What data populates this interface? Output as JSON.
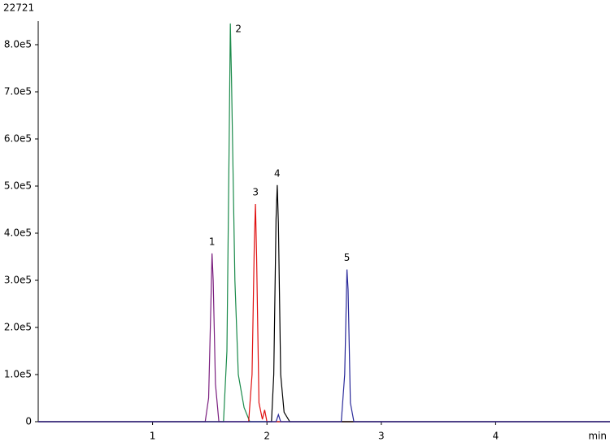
{
  "chart_data": {
    "type": "line",
    "corner_label": "22721",
    "x_label": "min",
    "xlim": [
      0,
      5
    ],
    "xticks": [
      1,
      2,
      3,
      4
    ],
    "ylim": [
      0,
      850000
    ],
    "yticks": [
      0,
      {
        "value": 100000,
        "label": "1.0e5"
      },
      {
        "value": 200000,
        "label": "2.0e5"
      },
      {
        "value": 300000,
        "label": "3.0e5"
      },
      {
        "value": 400000,
        "label": "4.0e5"
      },
      {
        "value": 500000,
        "label": "5.0e5"
      },
      {
        "value": 600000,
        "label": "6.0e5"
      },
      {
        "value": 700000,
        "label": "7.0e5"
      },
      {
        "value": 800000,
        "label": "8.0e5"
      }
    ],
    "series": [
      {
        "label": "1",
        "color": "#7b1f7f",
        "x": [
          0,
          1.46,
          1.49,
          1.51,
          1.52,
          1.53,
          1.55,
          1.58,
          5
        ],
        "values": [
          0,
          0,
          50000,
          250000,
          357000,
          300000,
          80000,
          0,
          0
        ]
      },
      {
        "label": "2",
        "color": "#1a8a4a",
        "x": [
          0,
          1.62,
          1.65,
          1.67,
          1.68,
          1.69,
          1.72,
          1.75,
          1.8,
          1.85,
          5
        ],
        "values": [
          0,
          0,
          150000,
          600000,
          845000,
          730000,
          300000,
          100000,
          30000,
          0,
          0
        ]
      },
      {
        "label": "3",
        "color": "#e01010",
        "x": [
          0,
          1.84,
          1.87,
          1.89,
          1.9,
          1.91,
          1.93,
          1.96,
          1.98,
          2.0,
          5
        ],
        "values": [
          0,
          0,
          100000,
          380000,
          462000,
          350000,
          40000,
          5000,
          25000,
          0,
          0
        ]
      },
      {
        "label": "4",
        "color": "#000000",
        "x": [
          0,
          2.04,
          2.06,
          2.08,
          2.09,
          2.1,
          2.12,
          2.15,
          2.2,
          5
        ],
        "values": [
          0,
          0,
          100000,
          430000,
          502000,
          420000,
          100000,
          20000,
          0,
          0
        ]
      },
      {
        "label": "5",
        "color": "#2a2a9a",
        "x": [
          0,
          2.08,
          2.1,
          2.12,
          2.65,
          2.68,
          2.7,
          2.71,
          2.73,
          2.76,
          5
        ],
        "values": [
          0,
          0,
          15000,
          0,
          0,
          100000,
          323000,
          280000,
          40000,
          0,
          0
        ]
      }
    ]
  }
}
